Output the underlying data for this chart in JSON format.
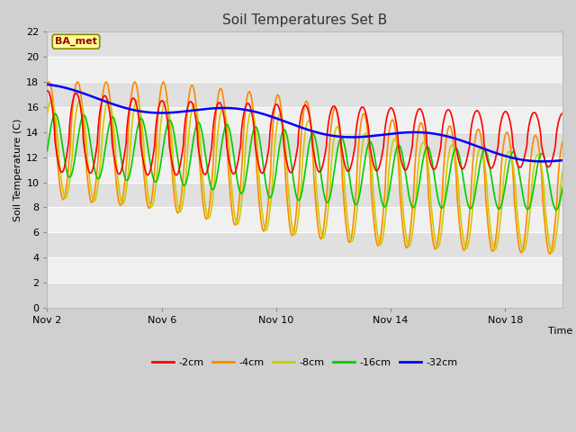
{
  "title": "Soil Temperatures Set B",
  "xlabel": "Time",
  "ylabel": "Soil Temperature (C)",
  "ylim": [
    0,
    22
  ],
  "yticks": [
    0,
    2,
    4,
    6,
    8,
    10,
    12,
    14,
    16,
    18,
    20,
    22
  ],
  "xtick_labels": [
    "Nov 2",
    "Nov 6",
    "Nov 10",
    "Nov 14",
    "Nov 18"
  ],
  "xtick_pos": [
    0,
    4,
    8,
    12,
    16
  ],
  "xlim": [
    0,
    18
  ],
  "fig_bg": "#d0d0d0",
  "plot_bg": "#f0f0f0",
  "stripe_color": "#e0e0e0",
  "grid_color": "#ffffff",
  "annotation_text": "BA_met",
  "annotation_bg": "#ffff99",
  "annotation_border": "#888800",
  "annotation_text_color": "#990000",
  "series": {
    "-2cm": {
      "color": "#ff0000",
      "lw": 1.2
    },
    "-4cm": {
      "color": "#ff8800",
      "lw": 1.2
    },
    "-8cm": {
      "color": "#cccc00",
      "lw": 1.2
    },
    "-16cm": {
      "color": "#00cc00",
      "lw": 1.2
    },
    "-32cm": {
      "color": "#0000ff",
      "lw": 1.8
    }
  },
  "n_points": 1000,
  "total_days": 18
}
